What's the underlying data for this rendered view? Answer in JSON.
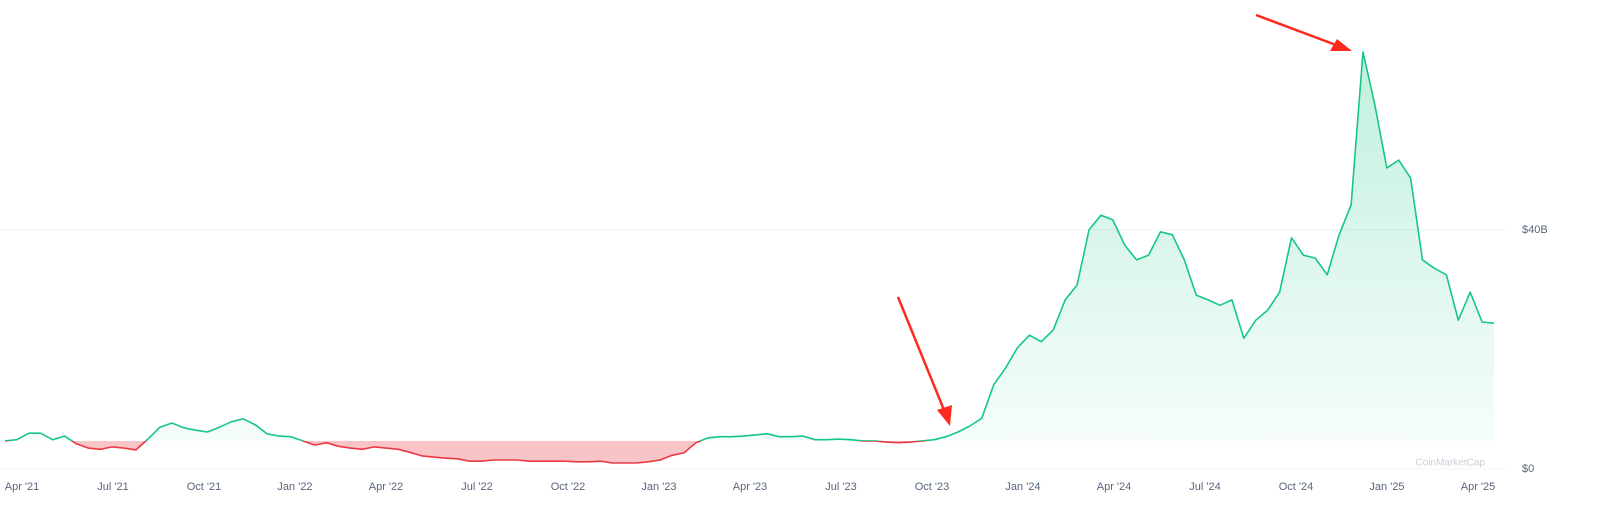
{
  "chart_data": {
    "type": "line",
    "x_labels": [
      "Apr '21",
      "Jul '21",
      "Oct '21",
      "Jan '22",
      "Apr '22",
      "Jul '22",
      "Oct '22",
      "Jan '23",
      "Apr '23",
      "Jul '23",
      "Oct '23",
      "Jan '24",
      "Apr '24",
      "Jul '24",
      "Oct '24",
      "Jan '25",
      "Apr '25"
    ],
    "values": [
      4.7,
      4.9,
      6.0,
      6.0,
      4.9,
      5.5,
      4.2,
      3.5,
      3.3,
      3.7,
      3.5,
      3.2,
      5.0,
      7.0,
      7.7,
      6.9,
      6.5,
      6.2,
      7.0,
      7.9,
      8.4,
      7.4,
      5.9,
      5.5,
      5.4,
      4.7,
      4.0,
      4.4,
      3.8,
      3.5,
      3.3,
      3.7,
      3.5,
      3.3,
      2.8,
      2.2,
      2.0,
      1.8,
      1.7,
      1.3,
      1.3,
      1.5,
      1.5,
      1.5,
      1.3,
      1.3,
      1.3,
      1.3,
      1.2,
      1.2,
      1.3,
      1.0,
      1.0,
      1.0,
      1.2,
      1.5,
      2.3,
      2.7,
      4.4,
      5.2,
      5.4,
      5.4,
      5.5,
      5.7,
      5.9,
      5.4,
      5.4,
      5.5,
      4.9,
      4.9,
      5.0,
      4.9,
      4.7,
      4.7,
      4.5,
      4.4,
      4.5,
      4.7,
      4.9,
      5.4,
      6.2,
      7.2,
      8.5,
      14.1,
      16.9,
      20.3,
      22.4,
      21.3,
      23.3,
      28.3,
      30.8,
      40.0,
      42.5,
      41.7,
      37.5,
      35.0,
      35.8,
      39.7,
      39.2,
      35.0,
      29.1,
      28.3,
      27.4,
      28.3,
      21.9,
      24.9,
      26.6,
      29.6,
      38.7,
      35.8,
      35.3,
      32.5,
      39.2,
      44.2,
      69.8,
      60.9,
      50.4,
      51.7,
      48.7,
      35.0,
      33.6,
      32.5,
      24.9,
      29.6,
      24.6,
      24.4
    ],
    "up_color": "#16c784",
    "down_color": "#ea3943",
    "ylim": [
      0,
      78.5
    ],
    "yticks": [
      {
        "value": 0,
        "label": "$0"
      },
      {
        "value": 40,
        "label": "$40B"
      }
    ],
    "grid": true,
    "y_axis_side": "right",
    "watermark": "CoinMarketCap"
  }
}
